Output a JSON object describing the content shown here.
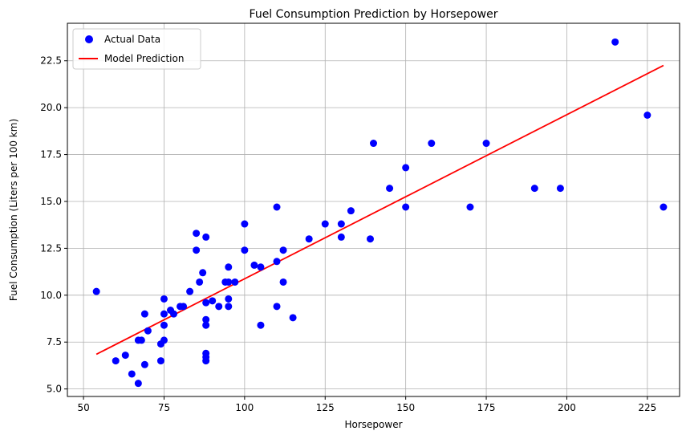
{
  "chart_data": {
    "type": "scatter",
    "title": "Fuel Consumption Prediction by Horsepower",
    "xlabel": "Horsepower",
    "ylabel": "Fuel Consumption (Liters per 100 km)",
    "xlim": [
      45,
      235
    ],
    "ylim": [
      4.6,
      24.5
    ],
    "xticks": [
      50,
      75,
      100,
      125,
      150,
      175,
      200,
      225
    ],
    "yticks": [
      5.0,
      7.5,
      10.0,
      12.5,
      15.0,
      17.5,
      20.0,
      22.5
    ],
    "xtick_labels": [
      "50",
      "75",
      "100",
      "125",
      "150",
      "175",
      "200",
      "225"
    ],
    "ytick_labels": [
      "5.0",
      "7.5",
      "10.0",
      "12.5",
      "15.0",
      "17.5",
      "20.0",
      "22.5"
    ],
    "grid": true,
    "legend": {
      "location": "top-left",
      "entries": [
        "Actual Data",
        "Model Prediction"
      ]
    },
    "series": [
      {
        "name": "Actual Data",
        "kind": "scatter",
        "color": "#0000ff",
        "points": [
          [
            54,
            10.2
          ],
          [
            60,
            6.5
          ],
          [
            63,
            6.8
          ],
          [
            65,
            5.8
          ],
          [
            67,
            7.6
          ],
          [
            67,
            5.3
          ],
          [
            68,
            7.6
          ],
          [
            69,
            9.0
          ],
          [
            69,
            6.3
          ],
          [
            70,
            8.1
          ],
          [
            74,
            7.4
          ],
          [
            74,
            6.5
          ],
          [
            75,
            9.8
          ],
          [
            75,
            9.0
          ],
          [
            75,
            8.4
          ],
          [
            75,
            7.6
          ],
          [
            77,
            9.2
          ],
          [
            78,
            9.0
          ],
          [
            80,
            9.4
          ],
          [
            81,
            9.4
          ],
          [
            83,
            10.2
          ],
          [
            85,
            13.3
          ],
          [
            85,
            12.4
          ],
          [
            86,
            10.7
          ],
          [
            87,
            11.2
          ],
          [
            88,
            13.1
          ],
          [
            88,
            9.6
          ],
          [
            88,
            8.7
          ],
          [
            88,
            8.4
          ],
          [
            88,
            6.9
          ],
          [
            88,
            6.7
          ],
          [
            88,
            6.5
          ],
          [
            90,
            9.7
          ],
          [
            92,
            9.4
          ],
          [
            94,
            10.7
          ],
          [
            95,
            11.5
          ],
          [
            95,
            10.7
          ],
          [
            95,
            9.8
          ],
          [
            95,
            9.4
          ],
          [
            97,
            10.7
          ],
          [
            100,
            13.8
          ],
          [
            100,
            12.4
          ],
          [
            103,
            11.6
          ],
          [
            105,
            11.5
          ],
          [
            105,
            8.4
          ],
          [
            110,
            14.7
          ],
          [
            110,
            11.8
          ],
          [
            110,
            9.4
          ],
          [
            112,
            12.4
          ],
          [
            112,
            10.7
          ],
          [
            115,
            8.8
          ],
          [
            120,
            13.0
          ],
          [
            125,
            13.8
          ],
          [
            130,
            13.8
          ],
          [
            130,
            13.1
          ],
          [
            133,
            14.5
          ],
          [
            139,
            13.0
          ],
          [
            140,
            18.1
          ],
          [
            145,
            15.7
          ],
          [
            150,
            16.8
          ],
          [
            150,
            14.7
          ],
          [
            158,
            18.1
          ],
          [
            170,
            14.7
          ],
          [
            175,
            18.1
          ],
          [
            190,
            15.7
          ],
          [
            198,
            15.7
          ],
          [
            215,
            23.5
          ],
          [
            225,
            19.6
          ],
          [
            230,
            14.7
          ]
        ]
      },
      {
        "name": "Model Prediction",
        "kind": "line",
        "color": "#ff0000",
        "points": [
          [
            54,
            6.85
          ],
          [
            230,
            22.25
          ]
        ]
      }
    ]
  }
}
